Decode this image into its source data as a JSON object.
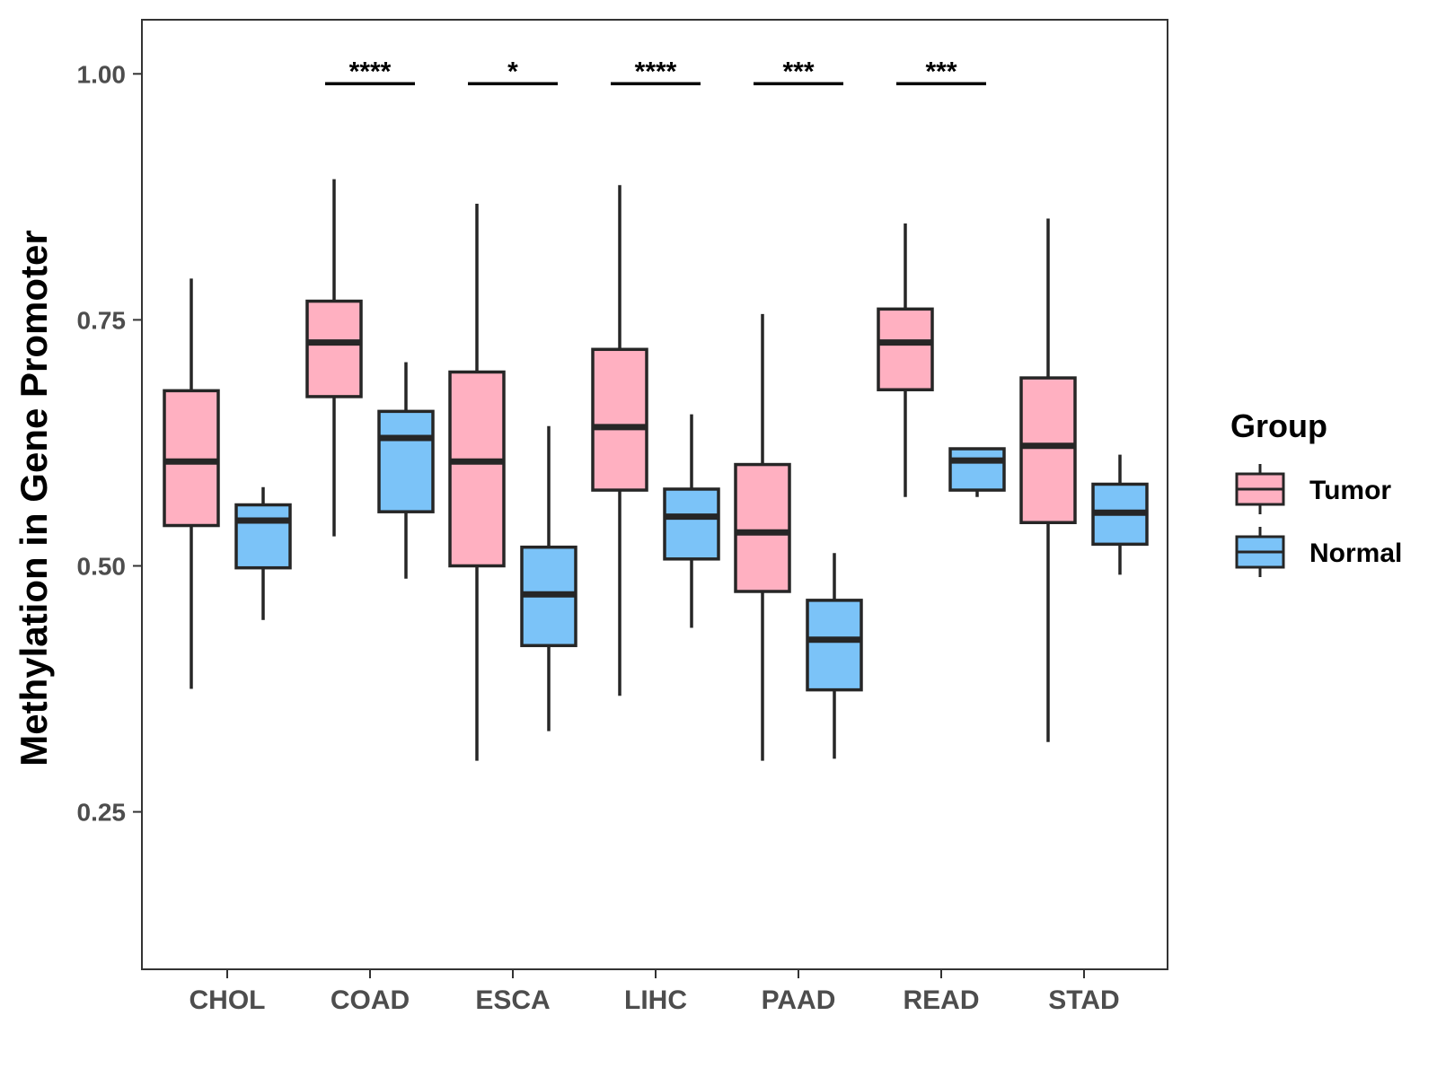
{
  "chart_data": {
    "type": "boxplot",
    "title": "",
    "xlabel": "",
    "ylabel": "Methylation in Gene Promoter",
    "ylim": [
      0.09,
      1.055
    ],
    "yticks": [
      0.25,
      0.5,
      0.75,
      1.0
    ],
    "ytick_labels": [
      "0.25",
      "0.50",
      "0.75",
      "1.00"
    ],
    "grid": false,
    "categories": [
      "CHOL",
      "COAD",
      "ESCA",
      "LIHC",
      "PAAD",
      "READ",
      "STAD"
    ],
    "legend": {
      "title": "Group",
      "position": "right",
      "entries": [
        {
          "name": "Tumor",
          "color": "#ffb0c1"
        },
        {
          "name": "Normal",
          "color": "#7bc3f8"
        }
      ]
    },
    "series": [
      {
        "name": "Tumor",
        "color": "#ffb0c1",
        "boxes": [
          {
            "min": 0.375,
            "q1": 0.541,
            "median": 0.606,
            "q3": 0.678,
            "max": 0.792
          },
          {
            "min": 0.53,
            "q1": 0.672,
            "median": 0.727,
            "q3": 0.769,
            "max": 0.893
          },
          {
            "min": 0.302,
            "q1": 0.5,
            "median": 0.606,
            "q3": 0.697,
            "max": 0.868
          },
          {
            "min": 0.368,
            "q1": 0.577,
            "median": 0.641,
            "q3": 0.72,
            "max": 0.887
          },
          {
            "min": 0.302,
            "q1": 0.474,
            "median": 0.534,
            "q3": 0.603,
            "max": 0.756
          },
          {
            "min": 0.57,
            "q1": 0.679,
            "median": 0.727,
            "q3": 0.761,
            "max": 0.848
          },
          {
            "min": 0.321,
            "q1": 0.544,
            "median": 0.622,
            "q3": 0.691,
            "max": 0.853
          }
        ]
      },
      {
        "name": "Normal",
        "color": "#7bc3f8",
        "boxes": [
          {
            "min": 0.445,
            "q1": 0.498,
            "median": 0.546,
            "q3": 0.562,
            "max": 0.58
          },
          {
            "min": 0.487,
            "q1": 0.555,
            "median": 0.63,
            "q3": 0.657,
            "max": 0.707
          },
          {
            "min": 0.332,
            "q1": 0.419,
            "median": 0.471,
            "q3": 0.519,
            "max": 0.642
          },
          {
            "min": 0.437,
            "q1": 0.507,
            "median": 0.55,
            "q3": 0.578,
            "max": 0.654
          },
          {
            "min": 0.304,
            "q1": 0.374,
            "median": 0.425,
            "q3": 0.465,
            "max": 0.513
          },
          {
            "min": 0.57,
            "q1": 0.577,
            "median": 0.607,
            "q3": 0.619,
            "max": 0.62
          },
          {
            "min": 0.491,
            "q1": 0.522,
            "median": 0.554,
            "q3": 0.583,
            "max": 0.613
          }
        ]
      }
    ],
    "annotations": [
      {
        "category": "COAD",
        "label": "****",
        "y": 0.99
      },
      {
        "category": "ESCA",
        "label": "*",
        "y": 0.99
      },
      {
        "category": "LIHC",
        "label": "****",
        "y": 0.99
      },
      {
        "category": "PAAD",
        "label": "***",
        "y": 0.99
      },
      {
        "category": "READ",
        "label": "***",
        "y": 0.99
      }
    ]
  }
}
